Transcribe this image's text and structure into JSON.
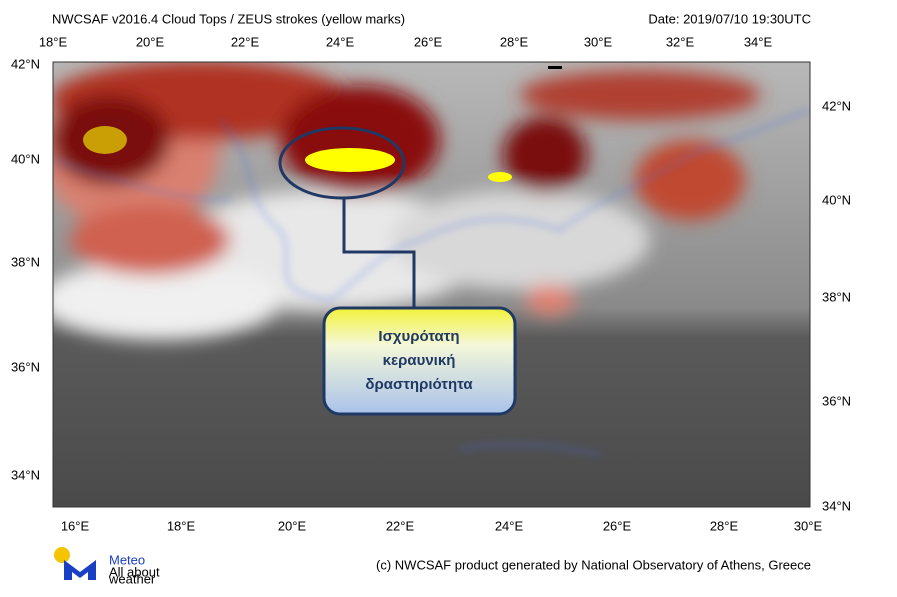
{
  "header": {
    "title": "NWCSAF v2016.4 Cloud Tops / ZEUS strokes (yellow marks)",
    "date": "Date: 2019/07/10 19:30UTC"
  },
  "map": {
    "top_labels": [
      "18°E",
      "20°E",
      "22°E",
      "24°E",
      "26°E",
      "28°E",
      "30°E",
      "32°E",
      "34°E"
    ],
    "left_labels": [
      "42°N",
      "40°N",
      "38°N",
      "36°N",
      "34°N"
    ],
    "right_labels": [
      "42°N",
      "40°N",
      "38°N",
      "36°N",
      "34°N"
    ],
    "bottom_labels": [
      "16°E",
      "18°E",
      "20°E",
      "22°E",
      "24°E",
      "26°E",
      "28°E",
      "30°E"
    ]
  },
  "annotation": {
    "lines": [
      "Ισχυρότατη",
      "κεραυνική",
      "δραστηριότητα"
    ]
  },
  "logo": {
    "name": "Meteo",
    "tagline": [
      "All about",
      "weather"
    ]
  },
  "footer": {
    "credit": "(c) NWCSAF product generated by National Observatory of Athens, Greece"
  }
}
